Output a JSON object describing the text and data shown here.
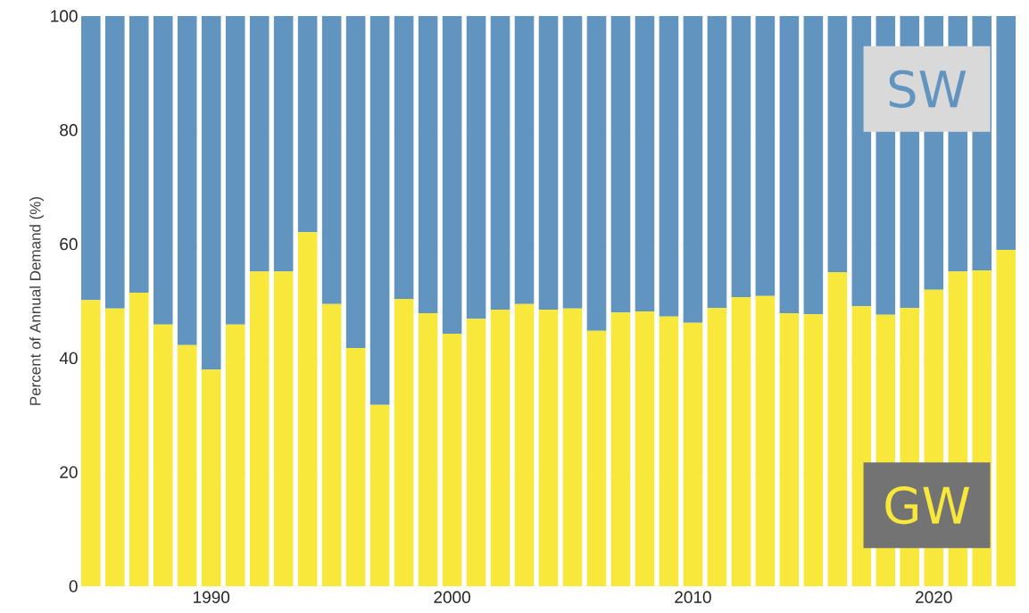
{
  "chart_data": {
    "type": "bar",
    "stacked": true,
    "ylabel": "Percent of Annual Demand (%)",
    "x": [
      1985,
      1986,
      1987,
      1988,
      1989,
      1990,
      1991,
      1992,
      1993,
      1994,
      1995,
      1996,
      1997,
      1998,
      1999,
      2000,
      2001,
      2002,
      2003,
      2004,
      2005,
      2006,
      2007,
      2008,
      2009,
      2010,
      2011,
      2012,
      2013,
      2014,
      2015,
      2016,
      2017,
      2018,
      2019,
      2020,
      2021,
      2022,
      2023
    ],
    "series": [
      {
        "name": "GW",
        "color": "#f8e83c",
        "values": [
          50.2,
          48.7,
          51.5,
          45.9,
          42.3,
          38.0,
          45.9,
          55.2,
          55.2,
          62.1,
          49.5,
          41.8,
          31.8,
          50.4,
          47.9,
          44.3,
          46.9,
          48.5,
          49.5,
          48.5,
          48.7,
          44.8,
          48.0,
          48.2,
          47.3,
          46.2,
          48.8,
          50.7,
          50.9,
          47.9,
          47.7,
          55.1,
          49.1,
          47.6,
          48.8,
          52.0,
          55.2,
          55.4,
          59.0
        ]
      },
      {
        "name": "SW",
        "color": "#6194bf",
        "values": [
          49.8,
          51.3,
          48.5,
          54.1,
          57.7,
          62.0,
          54.1,
          44.8,
          44.8,
          37.9,
          50.5,
          58.2,
          68.2,
          49.6,
          52.1,
          55.7,
          53.1,
          51.5,
          50.5,
          51.5,
          51.3,
          55.2,
          52.0,
          51.8,
          52.7,
          53.8,
          51.2,
          49.3,
          49.1,
          52.1,
          52.3,
          44.9,
          50.9,
          52.4,
          51.2,
          48.0,
          44.8,
          44.6,
          41.0
        ]
      }
    ],
    "xlim": [
      1984.6,
      2023.4
    ],
    "xticks": [
      1990,
      2000,
      2010,
      2020
    ],
    "ylim": [
      0,
      100
    ],
    "yticks": [
      0,
      20,
      40,
      60,
      80,
      100
    ],
    "grid": true
  }
}
